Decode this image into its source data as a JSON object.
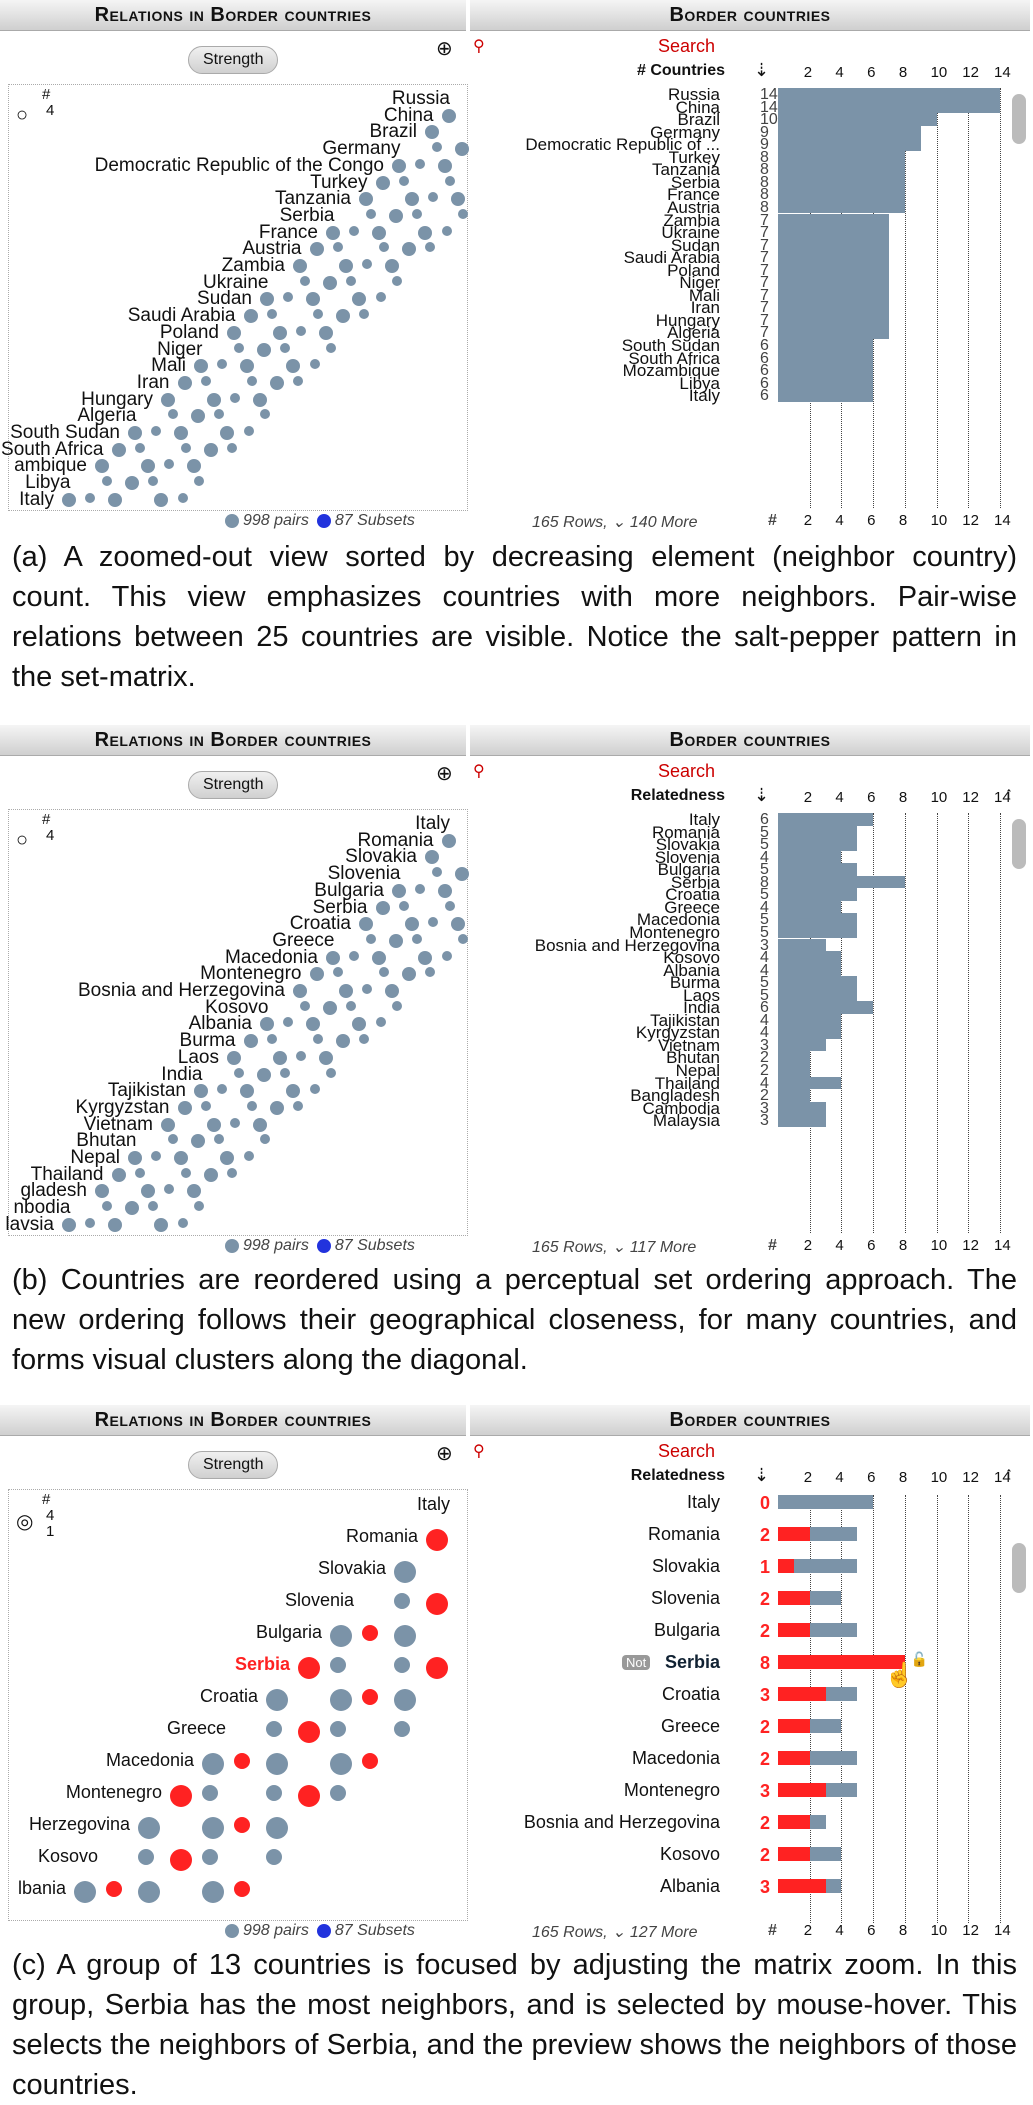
{
  "panels": [
    {
      "left_title": "Relations in Border countries",
      "right_title": "Border countries",
      "strength_label": "Strength",
      "search_label": "Search",
      "sort_label": "# Countries",
      "legend_hash": "#",
      "legend_val": "4",
      "ticks": [
        "2",
        "4",
        "6",
        "8",
        "10",
        "12",
        "14"
      ],
      "footer_left": "998 pairs",
      "footer_subsets": "87 Subsets",
      "footer_right": "165 Rows, ⌄ 140 More",
      "footer_hash": "#",
      "rows": [
        {
          "name": "Russia",
          "count": "14",
          "value": 14
        },
        {
          "name": "China",
          "count": "14",
          "value": 14
        },
        {
          "name": "Brazil",
          "count": "10",
          "value": 10
        },
        {
          "name": "Germany",
          "count": "9",
          "value": 9
        },
        {
          "name": "Democratic Republic of ...",
          "count": "9",
          "value": 9
        },
        {
          "name": "Turkey",
          "count": "8",
          "value": 8
        },
        {
          "name": "Tanzania",
          "count": "8",
          "value": 8
        },
        {
          "name": "Serbia",
          "count": "8",
          "value": 8
        },
        {
          "name": "France",
          "count": "8",
          "value": 8
        },
        {
          "name": "Austria",
          "count": "8",
          "value": 8
        },
        {
          "name": "Zambia",
          "count": "7",
          "value": 7
        },
        {
          "name": "Ukraine",
          "count": "7",
          "value": 7
        },
        {
          "name": "Sudan",
          "count": "7",
          "value": 7
        },
        {
          "name": "Saudi Arabia",
          "count": "7",
          "value": 7
        },
        {
          "name": "Poland",
          "count": "7",
          "value": 7
        },
        {
          "name": "Niger",
          "count": "7",
          "value": 7
        },
        {
          "name": "Mali",
          "count": "7",
          "value": 7
        },
        {
          "name": "Iran",
          "count": "7",
          "value": 7
        },
        {
          "name": "Hungary",
          "count": "7",
          "value": 7
        },
        {
          "name": "Algeria",
          "count": "7",
          "value": 7
        },
        {
          "name": "South Sudan",
          "count": "6",
          "value": 6
        },
        {
          "name": "South Africa",
          "count": "6",
          "value": 6
        },
        {
          "name": "Mozambique",
          "count": "6",
          "value": 6
        },
        {
          "name": "Libya",
          "count": "6",
          "value": 6
        },
        {
          "name": "Italy",
          "count": "6",
          "value": 6
        }
      ],
      "matrix_labels": [
        "Russia",
        "China",
        "Brazil",
        "Germany",
        "Democratic Republic of the Congo",
        "Turkey",
        "Tanzania",
        "Serbia",
        "France",
        "Austria",
        "Zambia",
        "Ukraine",
        "Sudan",
        "Saudi Arabia",
        "Poland",
        "Niger",
        "Mali",
        "Iran",
        "Hungary",
        "Algeria",
        "South Sudan",
        "South Africa",
        "ambique",
        "Libya",
        "Italy"
      ],
      "caption": "(a) A zoomed-out view sorted by decreasing element (neighbor country) count. This view emphasizes countries with more neighbors. Pair-wise relations between 25 countries are visible. Notice the salt-pepper pattern in the set-matrix."
    },
    {
      "left_title": "Relations in Border countries",
      "right_title": "Border countries",
      "strength_label": "Strength",
      "search_label": "Search",
      "sort_label": "Relatedness",
      "legend_hash": "#",
      "legend_val": "4",
      "ticks": [
        "2",
        "4",
        "6",
        "8",
        "10",
        "12",
        "14"
      ],
      "footer_left": "998 pairs",
      "footer_subsets": "87 Subsets",
      "footer_right": "165 Rows, ⌄ 117 More",
      "footer_hash": "#",
      "rows": [
        {
          "name": "Italy",
          "count": "6",
          "value": 6
        },
        {
          "name": "Romania",
          "count": "5",
          "value": 5
        },
        {
          "name": "Slovakia",
          "count": "5",
          "value": 5
        },
        {
          "name": "Slovenia",
          "count": "4",
          "value": 4
        },
        {
          "name": "Bulgaria",
          "count": "5",
          "value": 5
        },
        {
          "name": "Serbia",
          "count": "8",
          "value": 8
        },
        {
          "name": "Croatia",
          "count": "5",
          "value": 5
        },
        {
          "name": "Greece",
          "count": "4",
          "value": 4
        },
        {
          "name": "Macedonia",
          "count": "5",
          "value": 5
        },
        {
          "name": "Montenegro",
          "count": "5",
          "value": 5
        },
        {
          "name": "Bosnia and Herzegovina",
          "count": "3",
          "value": 3
        },
        {
          "name": "Kosovo",
          "count": "4",
          "value": 4
        },
        {
          "name": "Albania",
          "count": "4",
          "value": 4
        },
        {
          "name": "Burma",
          "count": "5",
          "value": 5
        },
        {
          "name": "Laos",
          "count": "5",
          "value": 5
        },
        {
          "name": "India",
          "count": "6",
          "value": 6
        },
        {
          "name": "Tajikistan",
          "count": "4",
          "value": 4
        },
        {
          "name": "Kyrgyzstan",
          "count": "4",
          "value": 4
        },
        {
          "name": "Vietnam",
          "count": "3",
          "value": 3
        },
        {
          "name": "Bhutan",
          "count": "2",
          "value": 2
        },
        {
          "name": "Nepal",
          "count": "2",
          "value": 2
        },
        {
          "name": "Thailand",
          "count": "4",
          "value": 4
        },
        {
          "name": "Bangladesh",
          "count": "2",
          "value": 2
        },
        {
          "name": "Cambodia",
          "count": "3",
          "value": 3
        },
        {
          "name": "Malaysia",
          "count": "3",
          "value": 3
        }
      ],
      "matrix_labels": [
        "Italy",
        "Romania",
        "Slovakia",
        "Slovenia",
        "Bulgaria",
        "Serbia",
        "Croatia",
        "Greece",
        "Macedonia",
        "Montenegro",
        "Bosnia and Herzegovina",
        "Kosovo",
        "Albania",
        "Burma",
        "Laos",
        "India",
        "Tajikistan",
        "Kyrgyzstan",
        "Vietnam",
        "Bhutan",
        "Nepal",
        "Thailand",
        "gladesh",
        "nbodia",
        "lavsia"
      ],
      "caption": "(b) Countries are reordered using a perceptual set ordering approach. The new ordering follows their geographical closeness, for many countries, and forms visual clusters along the diagonal."
    },
    {
      "left_title": "Relations in Border countries",
      "right_title": "Border countries",
      "strength_label": "Strength",
      "search_label": "Search",
      "sort_label": "Relatedness",
      "legend_hash": "#",
      "legend_val": "4",
      "legend_val2": "1",
      "ticks": [
        "2",
        "4",
        "6",
        "8",
        "10",
        "12",
        "14"
      ],
      "footer_left": "998 pairs",
      "footer_subsets": "87 Subsets",
      "footer_right": "165 Rows, ⌄ 127 More",
      "footer_hash": "#",
      "not_label": "Not",
      "rows": [
        {
          "name": "Italy",
          "count": "0",
          "value": 6,
          "red": 0
        },
        {
          "name": "Romania",
          "count": "2",
          "value": 5,
          "red": 2
        },
        {
          "name": "Slovakia",
          "count": "1",
          "value": 5,
          "red": 1
        },
        {
          "name": "Slovenia",
          "count": "2",
          "value": 4,
          "red": 2
        },
        {
          "name": "Bulgaria",
          "count": "2",
          "value": 5,
          "red": 2
        },
        {
          "name": "Serbia",
          "count": "8",
          "value": 8,
          "red": 8
        },
        {
          "name": "Croatia",
          "count": "3",
          "value": 5,
          "red": 3
        },
        {
          "name": "Greece",
          "count": "2",
          "value": 4,
          "red": 2
        },
        {
          "name": "Macedonia",
          "count": "2",
          "value": 5,
          "red": 2
        },
        {
          "name": "Montenegro",
          "count": "3",
          "value": 5,
          "red": 3
        },
        {
          "name": "Bosnia and Herzegovina",
          "count": "2",
          "value": 3,
          "red": 2
        },
        {
          "name": "Kosovo",
          "count": "2",
          "value": 4,
          "red": 2
        },
        {
          "name": "Albania",
          "count": "3",
          "value": 4,
          "red": 3
        }
      ],
      "matrix_labels": [
        "Italy",
        "Romania",
        "Slovakia",
        "Slovenia",
        "Bulgaria",
        "Serbia",
        "Croatia",
        "Greece",
        "Macedonia",
        "Montenegro",
        "Herzegovina",
        "Kosovo",
        "lbania"
      ],
      "caption": "(c) A group of 13 countries is focused by adjusting the matrix zoom. In this group, Serbia has the most neighbors, and is selected by mouse-hover. This selects the neighbors of Serbia, and the preview shows the neighbors of those countries."
    }
  ]
}
